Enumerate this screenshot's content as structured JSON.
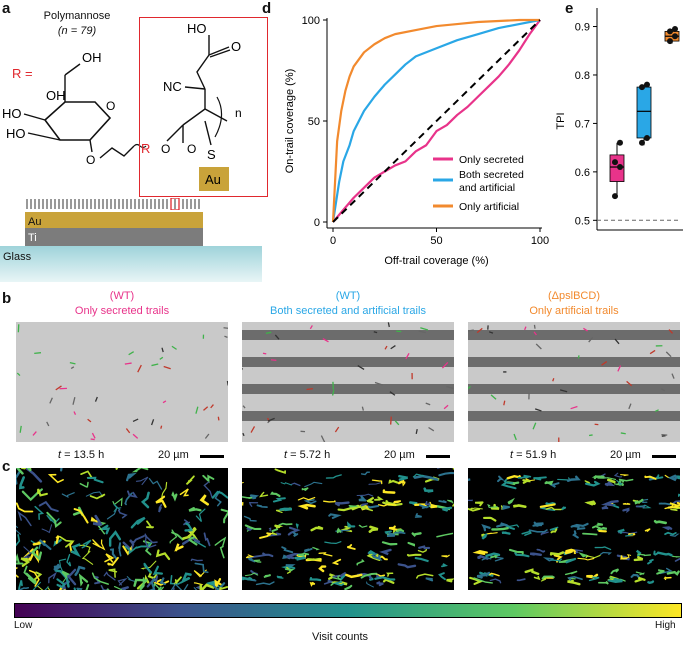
{
  "panels": {
    "a": "a",
    "b": "b",
    "c": "c",
    "d": "d",
    "e": "e"
  },
  "panel_a": {
    "polymer_title": "Polymannose",
    "polymer_n": "(n = 79)",
    "r_label": "R =",
    "chem_labels": {
      "oh_top": "OH",
      "oh_left1": "HO",
      "oh_left2": "HO",
      "oh_ring": "OH",
      "o_ring": "O",
      "o_link": "O",
      "hooc": "HO",
      "o_acid": "O",
      "nc": "NC",
      "n_sub": "n",
      "r_chain": "R",
      "o_ester": "O",
      "o_carbonyl": "O",
      "s": "S",
      "au_chip": "Au"
    },
    "layers": {
      "au": "Au",
      "ti": "Ti",
      "glass": "Glass"
    }
  },
  "panel_b": {
    "columns": [
      {
        "strain": "(WT)",
        "condition": "Only secreted trails",
        "time_prefix": "t",
        "time_value": "= 13.5 h",
        "scale": "20 µm",
        "color": "#e8338a"
      },
      {
        "strain": "(WT)",
        "condition": "Both secreted and artificial trails",
        "time_prefix": "t",
        "time_value": "= 5.72 h",
        "scale": "20 µm",
        "color": "#2aa7e6"
      },
      {
        "strain": "(ΔpslBCD)",
        "condition": "Only artificial trails",
        "time_prefix": "t",
        "time_value": "= 51.9 h",
        "scale": "20 µm",
        "color": "#f28a2e"
      }
    ]
  },
  "colorbar": {
    "low": "Low",
    "high": "High",
    "label": "Visit counts"
  },
  "chart_data": [
    {
      "type": "line",
      "panel": "d",
      "xlabel": "Off-trail coverage (%)",
      "ylabel": "On-trail coverage (%)",
      "xlim": [
        0,
        100
      ],
      "ylim": [
        0,
        100
      ],
      "xticks": [
        "0",
        "50",
        "100"
      ],
      "yticks": [
        "0",
        "50",
        "100"
      ],
      "series": [
        {
          "name": "Only secreted",
          "color": "#e8338a",
          "x": [
            0,
            5,
            10,
            15,
            20,
            25,
            30,
            35,
            40,
            45,
            50,
            55,
            60,
            65,
            70,
            75,
            80,
            85,
            90,
            95,
            100
          ],
          "y": [
            0,
            6,
            12,
            17,
            22,
            25,
            28,
            30,
            35,
            38,
            45,
            48,
            53,
            57,
            62,
            67,
            72,
            78,
            85,
            93,
            100
          ]
        },
        {
          "name": "Both secreted and artificial",
          "color": "#2aa7e6",
          "x": [
            0,
            3,
            5,
            8,
            10,
            15,
            20,
            25,
            30,
            35,
            40,
            50,
            60,
            70,
            80,
            90,
            100
          ],
          "y": [
            0,
            20,
            30,
            38,
            45,
            55,
            62,
            68,
            73,
            78,
            82,
            86,
            90,
            93,
            96,
            98,
            100
          ]
        },
        {
          "name": "Only artificial",
          "color": "#f28a2e",
          "x": [
            0,
            2,
            4,
            6,
            8,
            10,
            15,
            20,
            25,
            30,
            40,
            50,
            60,
            70,
            80,
            90,
            100
          ],
          "y": [
            0,
            40,
            55,
            65,
            72,
            77,
            84,
            88,
            91,
            93,
            95,
            97,
            98,
            99,
            99.5,
            100,
            100
          ]
        },
        {
          "name": "diagonal",
          "color": "#000000",
          "dashed": true,
          "x": [
            0,
            100
          ],
          "y": [
            0,
            100
          ]
        }
      ],
      "legend": [
        "Only secreted",
        "Both secreted and artificial",
        "Only artificial"
      ]
    },
    {
      "type": "box",
      "panel": "e",
      "ylabel": "TPI",
      "ylim": [
        0.48,
        0.93
      ],
      "yticks": [
        "0.5",
        "0.6",
        "0.7",
        "0.8",
        "0.9"
      ],
      "reference_line": 0.5,
      "boxes": [
        {
          "name": "Only secreted",
          "color": "#e8338a",
          "q1": 0.58,
          "median": 0.61,
          "q3": 0.635,
          "whisker_low": 0.55,
          "whisker_high": 0.66,
          "points": [
            0.55,
            0.61,
            0.62,
            0.66
          ]
        },
        {
          "name": "Both secreted and artificial",
          "color": "#2aa7e6",
          "q1": 0.67,
          "median": 0.725,
          "q3": 0.775,
          "whisker_low": 0.655,
          "whisker_high": 0.78,
          "points": [
            0.66,
            0.67,
            0.775,
            0.78
          ]
        },
        {
          "name": "Only artificial",
          "color": "#f28a2e",
          "q1": 0.87,
          "median": 0.88,
          "q3": 0.89,
          "whisker_low": 0.865,
          "whisker_high": 0.895,
          "points": [
            0.87,
            0.88,
            0.89,
            0.895
          ]
        }
      ]
    }
  ]
}
